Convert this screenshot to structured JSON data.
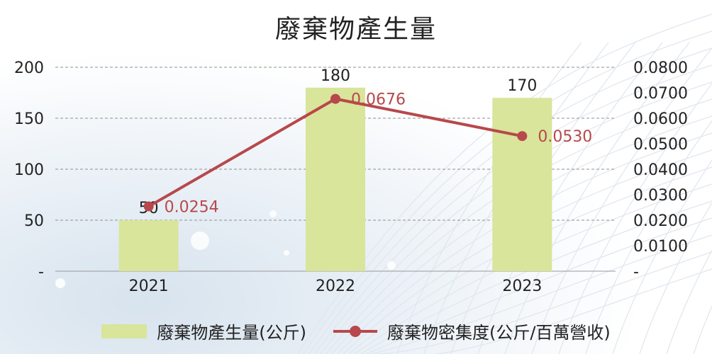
{
  "chart_data": {
    "type": "bar+line",
    "title": "廢棄物產生量",
    "categories": [
      "2021",
      "2022",
      "2023"
    ],
    "series": [
      {
        "name": "廢棄物產生量(公斤)",
        "type": "bar",
        "axis": "left",
        "values": [
          50,
          180,
          170
        ],
        "labels": [
          "50",
          "180",
          "170"
        ],
        "color": "#d8e59b"
      },
      {
        "name": "廢棄物密集度(公斤/百萬營收)",
        "type": "line",
        "axis": "right",
        "values": [
          0.0254,
          0.0676,
          0.053
        ],
        "labels": [
          "0.0254",
          "0.0676",
          "0.0530"
        ],
        "color": "#b8484b"
      }
    ],
    "y_left": {
      "min": 0,
      "max": 200,
      "ticks": [
        "-",
        "50",
        "100",
        "150",
        "200"
      ]
    },
    "y_right": {
      "min": 0,
      "max": 0.08,
      "ticks": [
        "-",
        "0.0100",
        "0.0200",
        "0.0300",
        "0.0400",
        "0.0500",
        "0.0600",
        "0.0700",
        "0.0800"
      ]
    },
    "grid": true,
    "legend_position": "bottom"
  }
}
